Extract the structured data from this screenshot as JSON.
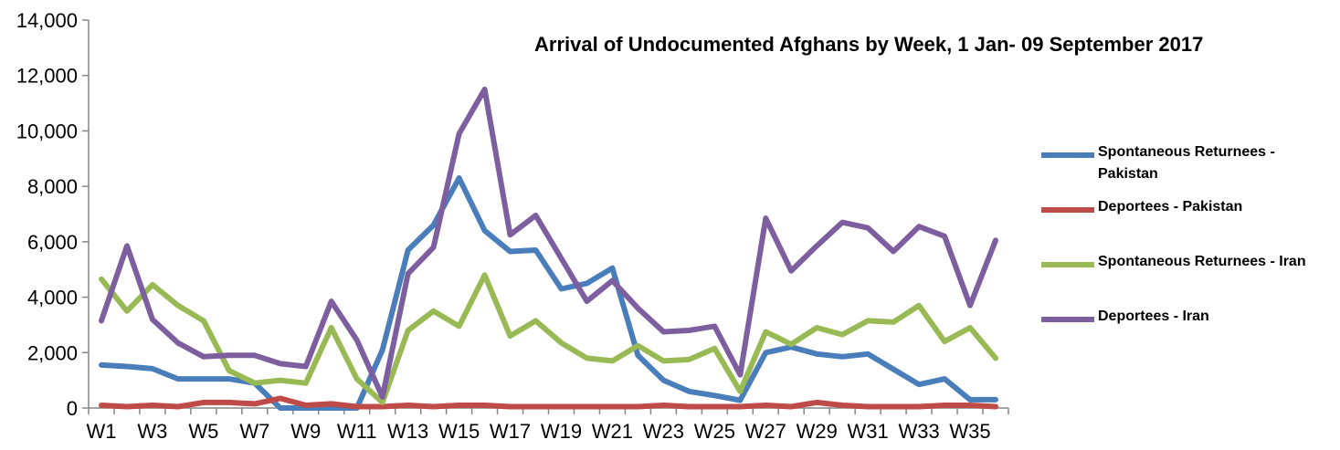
{
  "chart_data": {
    "type": "line",
    "title": "Arrival of Undocumented  Afghans by Week, 1 Jan- 09 September  2017",
    "xlabel": "",
    "ylabel": "",
    "ylim": [
      0,
      14000
    ],
    "yticks": [
      0,
      2000,
      4000,
      6000,
      8000,
      10000,
      12000,
      14000
    ],
    "ytick_labels": [
      "0",
      "2,000",
      "4,000",
      "6,000",
      "8,000",
      "10,000",
      "12,000",
      "14,000"
    ],
    "grid": false,
    "legend_position": "right",
    "x": [
      "W1",
      "W2",
      "W3",
      "W4",
      "W5",
      "W6",
      "W7",
      "W8",
      "W9",
      "W10",
      "W11",
      "W12",
      "W13",
      "W14",
      "W15",
      "W16",
      "W17",
      "W18",
      "W19",
      "W20",
      "W21",
      "W22",
      "W23",
      "W24",
      "W25",
      "W26",
      "W27",
      "W28",
      "W29",
      "W30",
      "W31",
      "W32",
      "W33",
      "W34",
      "W35",
      "W36"
    ],
    "x_tick_labels": [
      "W1",
      "W3",
      "W5",
      "W7",
      "W9",
      "W11",
      "W13",
      "W15",
      "W17",
      "W19",
      "W21",
      "W23",
      "W25",
      "W27",
      "W29",
      "W31",
      "W33",
      "W35"
    ],
    "series": [
      {
        "name": "Spontaneous Returnees - Pakistan",
        "color": "#4A7EBB",
        "values": [
          1550,
          1500,
          1420,
          1050,
          1050,
          1050,
          900,
          0,
          0,
          0,
          0,
          2100,
          5700,
          6600,
          8300,
          6400,
          5650,
          5700,
          4300,
          4500,
          5050,
          1900,
          1000,
          600,
          450,
          280,
          2000,
          2200,
          1950,
          1850,
          1950,
          1400,
          850,
          1050,
          300,
          300
        ]
      },
      {
        "name": "Deportees - Pakistan",
        "color": "#BE4B48",
        "values": [
          100,
          50,
          100,
          50,
          200,
          200,
          150,
          350,
          100,
          150,
          50,
          50,
          100,
          50,
          100,
          100,
          50,
          50,
          50,
          50,
          50,
          50,
          100,
          50,
          50,
          50,
          100,
          50,
          200,
          100,
          50,
          50,
          50,
          100,
          100,
          50
        ]
      },
      {
        "name": "Spontaneous Returnees - Iran",
        "color": "#98B954",
        "values": [
          4650,
          3500,
          4450,
          3700,
          3150,
          1350,
          900,
          1000,
          900,
          2900,
          1050,
          200,
          2800,
          3500,
          2950,
          4800,
          2600,
          3150,
          2350,
          1800,
          1700,
          2250,
          1700,
          1750,
          2150,
          600,
          2750,
          2300,
          2900,
          2650,
          3150,
          3100,
          3700,
          2400,
          2900,
          1800
        ]
      },
      {
        "name": "Deportees - Iran",
        "color": "#7D5FA0",
        "values": [
          3150,
          5850,
          3200,
          2350,
          1850,
          1900,
          1900,
          1600,
          1500,
          3850,
          2450,
          400,
          4850,
          5800,
          9900,
          11500,
          6250,
          6950,
          5400,
          3850,
          4600,
          3600,
          2750,
          2800,
          2950,
          1200,
          6850,
          4950,
          5850,
          6700,
          6500,
          5650,
          6550,
          6200,
          3700,
          6050
        ]
      }
    ]
  }
}
